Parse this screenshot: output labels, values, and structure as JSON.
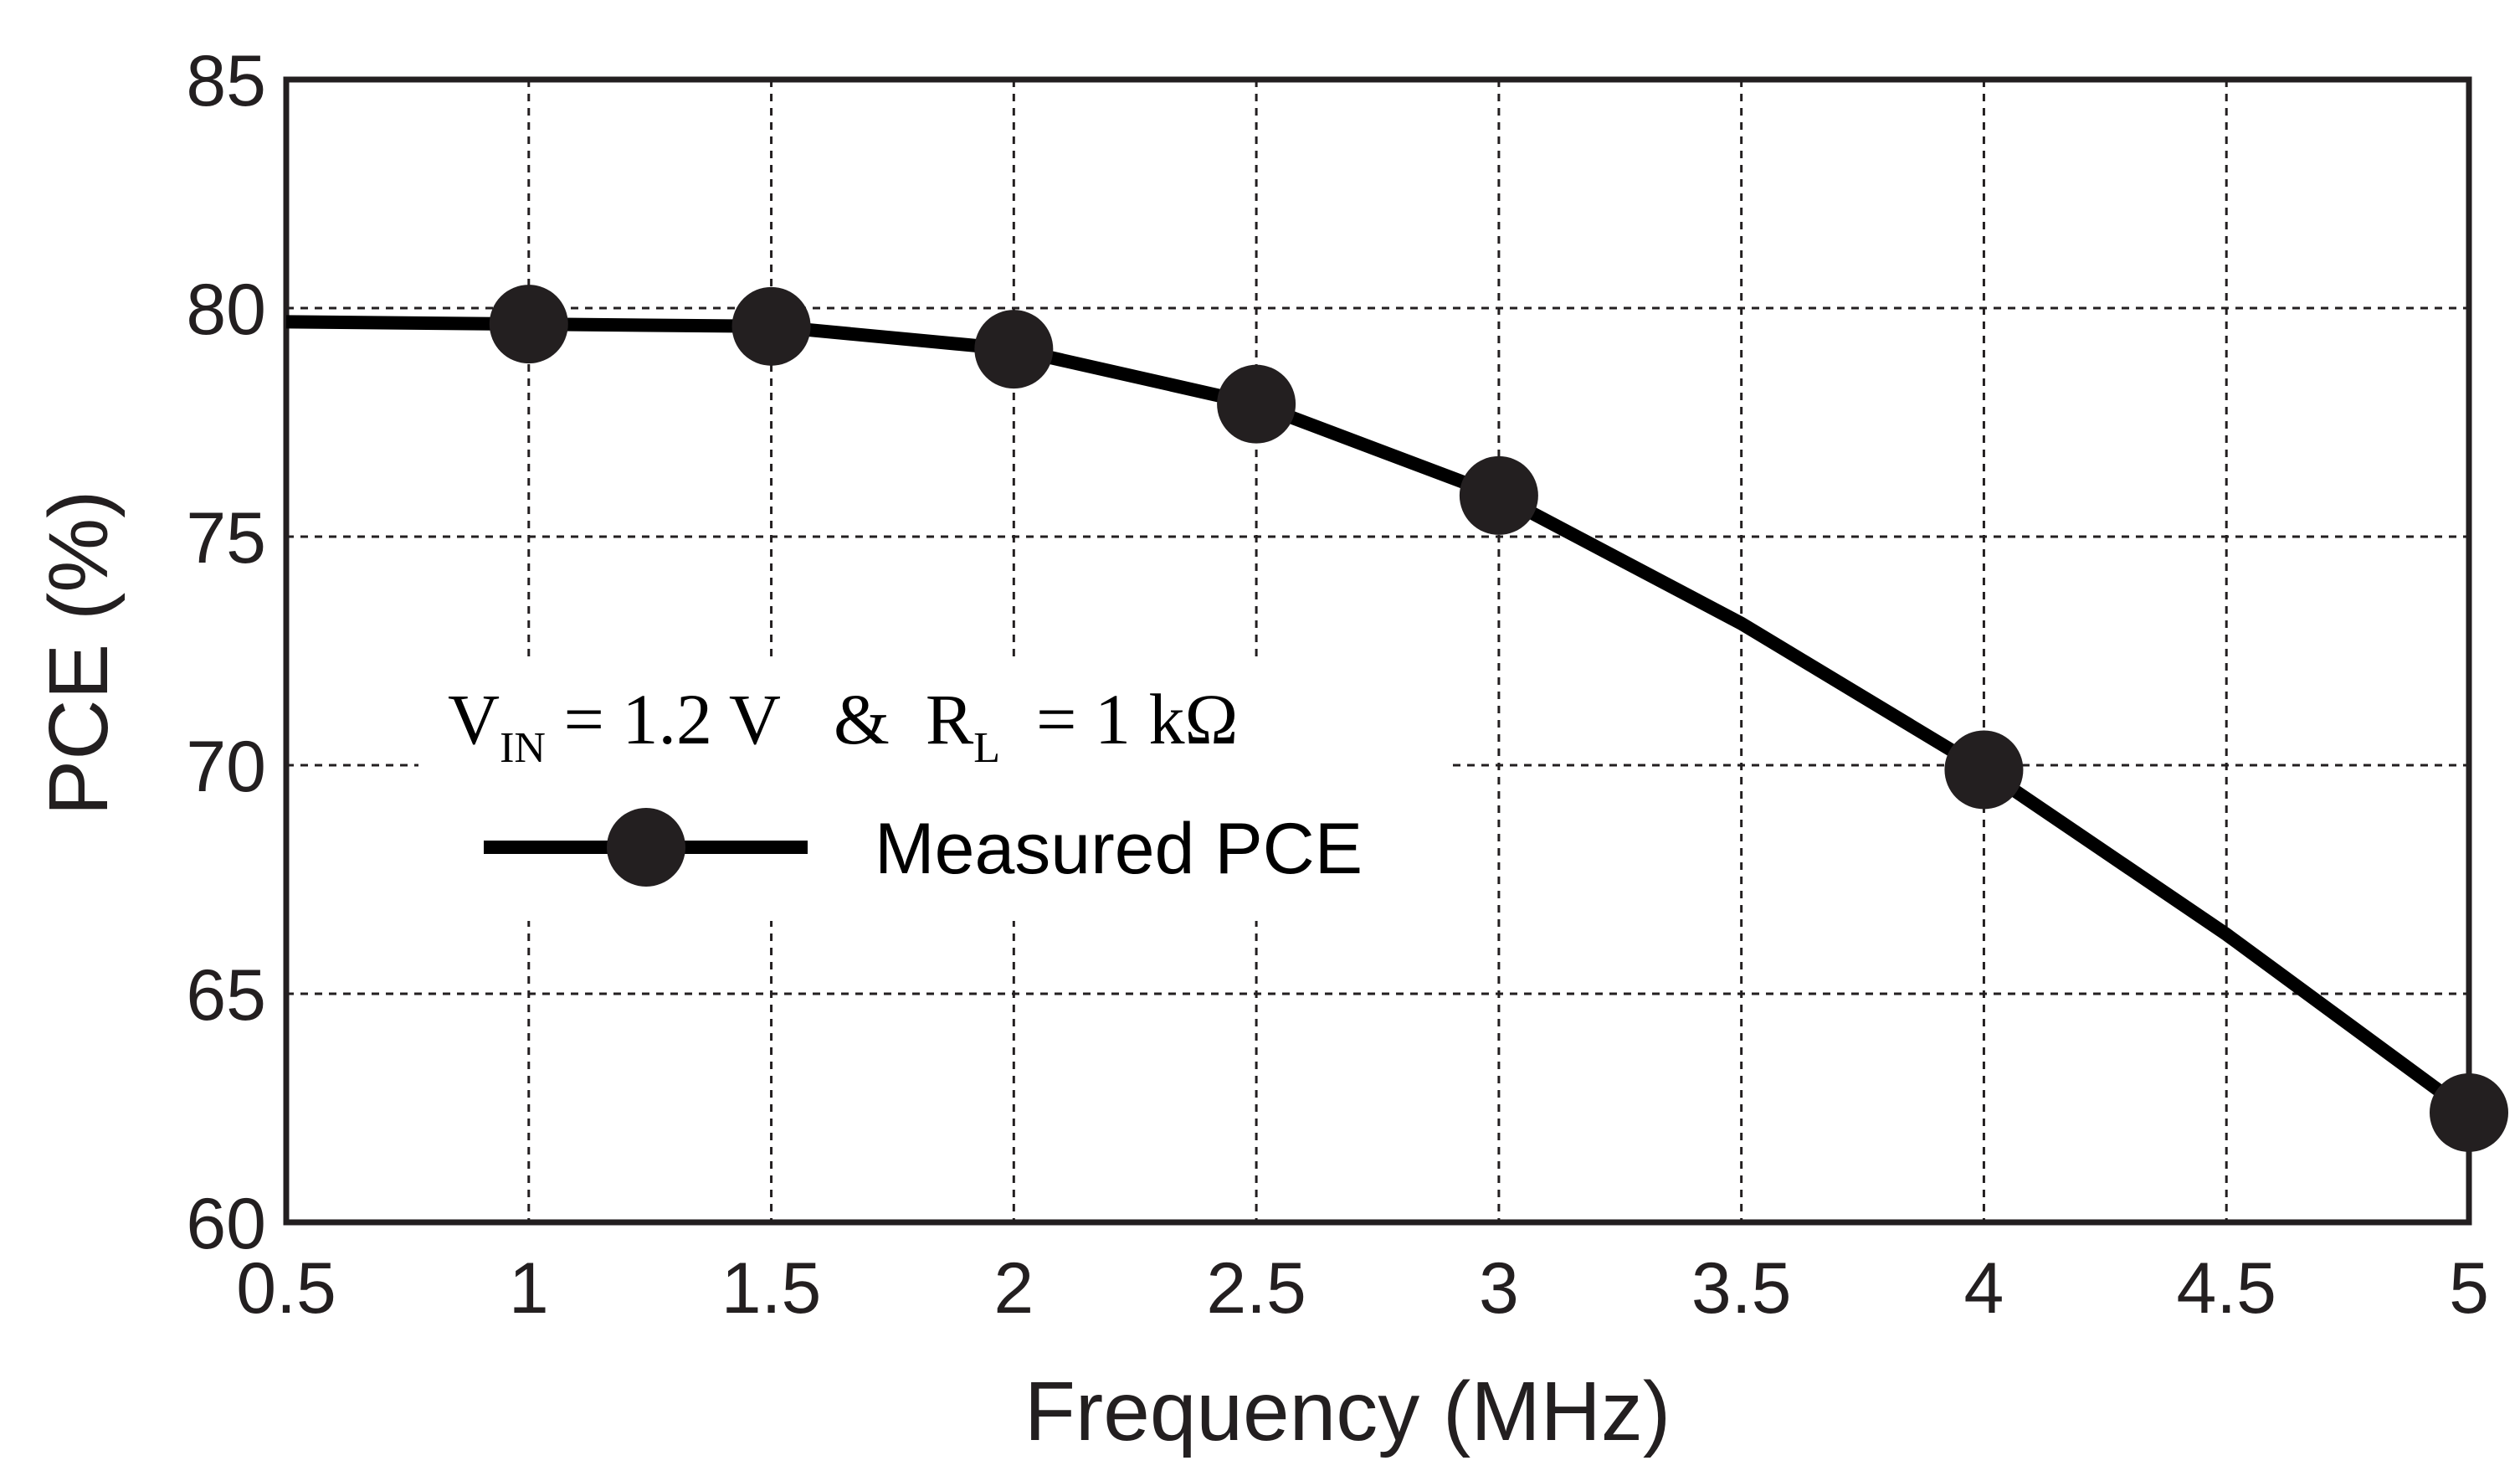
{
  "chart_data": {
    "type": "line",
    "title": "",
    "xlabel": "Frequency (MHz)",
    "ylabel": "PCE (%)",
    "xlim": [
      0.5,
      5
    ],
    "ylim": [
      60,
      85
    ],
    "xticks": [
      0.5,
      1,
      1.5,
      2,
      2.5,
      3,
      3.5,
      4,
      4.5,
      5
    ],
    "xtick_labels": [
      "0.5",
      "1",
      "1.5",
      "2",
      "2.5",
      "3",
      "3.5",
      "4",
      "4.5",
      "5"
    ],
    "yticks": [
      60,
      65,
      70,
      75,
      80,
      85
    ],
    "ytick_labels": [
      "60",
      "65",
      "70",
      "75",
      "80",
      "85"
    ],
    "grid": true,
    "series": [
      {
        "name": "Measured PCE",
        "color": "#000000",
        "marker_color": "#231f20",
        "line": {
          "x": [
            0.5,
            1,
            1.5,
            2,
            2.5,
            3,
            3.5,
            4,
            4.5,
            5
          ],
          "y": [
            79.7,
            79.65,
            79.6,
            79.1,
            77.9,
            75.9,
            73.1,
            69.9,
            66.3,
            62.4
          ]
        },
        "markers": {
          "x": [
            1,
            1.5,
            2,
            2.5,
            3,
            4,
            5
          ],
          "y": [
            79.65,
            79.6,
            79.1,
            77.9,
            75.9,
            69.9,
            62.4
          ]
        }
      }
    ],
    "annotation": {
      "v_main": "V",
      "v_sub": "IN",
      "v_rest": " = 1.2 V   &  ",
      "r_main": "R",
      "r_sub": "L",
      "r_rest": "  = 1 kΩ"
    },
    "legend": {
      "position": "center-left",
      "label": "Measured PCE"
    }
  }
}
